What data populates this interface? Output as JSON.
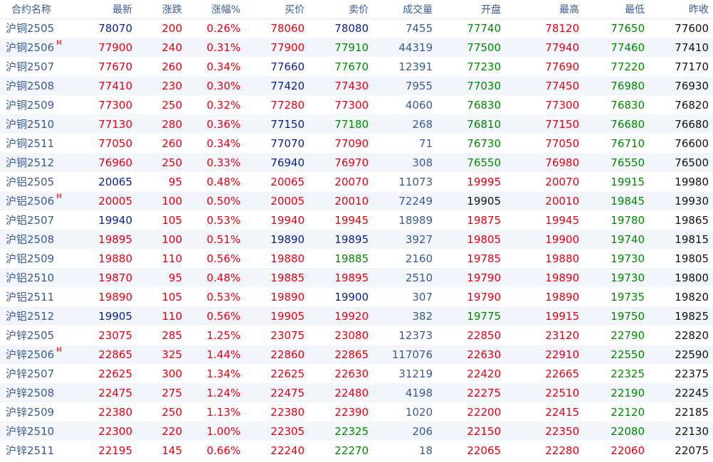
{
  "colors": {
    "up": "#e60012",
    "down": "#008a00",
    "flat": "#0a1f8c",
    "header": "#3c5a91",
    "volume": "#3c5a91",
    "prev_close": "#111111",
    "row_stripe": "#f2f5fa"
  },
  "headers": [
    "合约名称",
    "最新",
    "涨跌",
    "涨幅%",
    "买价",
    "卖价",
    "成交量",
    "开盘",
    "最高",
    "最低",
    "昨收"
  ],
  "main_marker": "M",
  "rows": [
    {
      "name": "沪铜2505",
      "main": "",
      "latest": "78070",
      "change": "200",
      "pct": "0.26%",
      "bid": "78060",
      "ask": "78080",
      "volume": "7455",
      "open": "77740",
      "high": "78120",
      "low": "77650",
      "prev": "77600",
      "cl": "navy",
      "cb": "red",
      "ca": "navy",
      "co": "green",
      "ch": "red",
      "clw": "green"
    },
    {
      "name": "沪铜2506",
      "main": "M",
      "latest": "77900",
      "change": "240",
      "pct": "0.31%",
      "bid": "77900",
      "ask": "77910",
      "volume": "44319",
      "open": "77500",
      "high": "77940",
      "low": "77460",
      "prev": "77410",
      "cl": "red",
      "cb": "red",
      "ca": "green",
      "co": "green",
      "ch": "red",
      "clw": "green"
    },
    {
      "name": "沪铜2507",
      "main": "",
      "latest": "77670",
      "change": "260",
      "pct": "0.34%",
      "bid": "77660",
      "ask": "77670",
      "volume": "12391",
      "open": "77230",
      "high": "77690",
      "low": "77220",
      "prev": "77170",
      "cl": "red",
      "cb": "navy",
      "ca": "green",
      "co": "green",
      "ch": "red",
      "clw": "green"
    },
    {
      "name": "沪铜2508",
      "main": "",
      "latest": "77410",
      "change": "230",
      "pct": "0.30%",
      "bid": "77420",
      "ask": "77430",
      "volume": "7955",
      "open": "77030",
      "high": "77450",
      "low": "76980",
      "prev": "76930",
      "cl": "red",
      "cb": "navy",
      "ca": "red",
      "co": "green",
      "ch": "red",
      "clw": "green"
    },
    {
      "name": "沪铜2509",
      "main": "",
      "latest": "77300",
      "change": "250",
      "pct": "0.32%",
      "bid": "77280",
      "ask": "77300",
      "volume": "4060",
      "open": "76830",
      "high": "77300",
      "low": "76830",
      "prev": "76820",
      "cl": "red",
      "cb": "red",
      "ca": "red",
      "co": "green",
      "ch": "red",
      "clw": "green"
    },
    {
      "name": "沪铜2510",
      "main": "",
      "latest": "77130",
      "change": "280",
      "pct": "0.36%",
      "bid": "77150",
      "ask": "77180",
      "volume": "268",
      "open": "76810",
      "high": "77150",
      "low": "76680",
      "prev": "76680",
      "cl": "red",
      "cb": "navy",
      "ca": "green",
      "co": "green",
      "ch": "red",
      "clw": "green"
    },
    {
      "name": "沪铜2511",
      "main": "",
      "latest": "77050",
      "change": "260",
      "pct": "0.34%",
      "bid": "77070",
      "ask": "77090",
      "volume": "71",
      "open": "76730",
      "high": "77050",
      "low": "76710",
      "prev": "76600",
      "cl": "red",
      "cb": "navy",
      "ca": "red",
      "co": "green",
      "ch": "red",
      "clw": "green"
    },
    {
      "name": "沪铜2512",
      "main": "",
      "latest": "76960",
      "change": "250",
      "pct": "0.33%",
      "bid": "76940",
      "ask": "76970",
      "volume": "308",
      "open": "76550",
      "high": "76980",
      "low": "76550",
      "prev": "76500",
      "cl": "red",
      "cb": "navy",
      "ca": "red",
      "co": "green",
      "ch": "red",
      "clw": "green"
    },
    {
      "name": "沪铝2505",
      "main": "",
      "latest": "20065",
      "change": "95",
      "pct": "0.48%",
      "bid": "20065",
      "ask": "20070",
      "volume": "11073",
      "open": "19995",
      "high": "20070",
      "low": "19915",
      "prev": "19980",
      "cl": "navy",
      "cb": "red",
      "ca": "red",
      "co": "red",
      "ch": "red",
      "clw": "green"
    },
    {
      "name": "沪铝2506",
      "main": "M",
      "latest": "20005",
      "change": "100",
      "pct": "0.50%",
      "bid": "20005",
      "ask": "20010",
      "volume": "72249",
      "open": "19905",
      "high": "20010",
      "low": "19845",
      "prev": "19930",
      "cl": "red",
      "cb": "red",
      "ca": "red",
      "co": "black",
      "ch": "red",
      "clw": "green"
    },
    {
      "name": "沪铝2507",
      "main": "",
      "latest": "19940",
      "change": "105",
      "pct": "0.53%",
      "bid": "19940",
      "ask": "19945",
      "volume": "18989",
      "open": "19875",
      "high": "19945",
      "low": "19780",
      "prev": "19865",
      "cl": "navy",
      "cb": "red",
      "ca": "red",
      "co": "red",
      "ch": "red",
      "clw": "green"
    },
    {
      "name": "沪铝2508",
      "main": "",
      "latest": "19895",
      "change": "100",
      "pct": "0.51%",
      "bid": "19890",
      "ask": "19895",
      "volume": "3927",
      "open": "19805",
      "high": "19900",
      "low": "19740",
      "prev": "19815",
      "cl": "red",
      "cb": "navy",
      "ca": "navy",
      "co": "red",
      "ch": "red",
      "clw": "green"
    },
    {
      "name": "沪铝2509",
      "main": "",
      "latest": "19880",
      "change": "110",
      "pct": "0.56%",
      "bid": "19880",
      "ask": "19885",
      "volume": "2160",
      "open": "19785",
      "high": "19880",
      "low": "19730",
      "prev": "19805",
      "cl": "red",
      "cb": "red",
      "ca": "green",
      "co": "red",
      "ch": "red",
      "clw": "green"
    },
    {
      "name": "沪铝2510",
      "main": "",
      "latest": "19870",
      "change": "95",
      "pct": "0.48%",
      "bid": "19885",
      "ask": "19895",
      "volume": "2510",
      "open": "19790",
      "high": "19890",
      "low": "19730",
      "prev": "19800",
      "cl": "red",
      "cb": "red",
      "ca": "red",
      "co": "red",
      "ch": "red",
      "clw": "green"
    },
    {
      "name": "沪铝2511",
      "main": "",
      "latest": "19890",
      "change": "105",
      "pct": "0.53%",
      "bid": "19890",
      "ask": "19900",
      "volume": "307",
      "open": "19790",
      "high": "19890",
      "low": "19735",
      "prev": "19820",
      "cl": "red",
      "cb": "red",
      "ca": "navy",
      "co": "red",
      "ch": "red",
      "clw": "green"
    },
    {
      "name": "沪铝2512",
      "main": "",
      "latest": "19905",
      "change": "110",
      "pct": "0.56%",
      "bid": "19905",
      "ask": "19920",
      "volume": "382",
      "open": "19775",
      "high": "19915",
      "low": "19750",
      "prev": "19825",
      "cl": "navy",
      "cb": "red",
      "ca": "red",
      "co": "green",
      "ch": "red",
      "clw": "green"
    },
    {
      "name": "沪锌2505",
      "main": "",
      "latest": "23075",
      "change": "285",
      "pct": "1.25%",
      "bid": "23075",
      "ask": "23080",
      "volume": "12373",
      "open": "22850",
      "high": "23120",
      "low": "22790",
      "prev": "22820",
      "cl": "red",
      "cb": "red",
      "ca": "red",
      "co": "red",
      "ch": "red",
      "clw": "green"
    },
    {
      "name": "沪锌2506",
      "main": "M",
      "latest": "22865",
      "change": "325",
      "pct": "1.44%",
      "bid": "22860",
      "ask": "22865",
      "volume": "117076",
      "open": "22630",
      "high": "22910",
      "low": "22550",
      "prev": "22590",
      "cl": "red",
      "cb": "red",
      "ca": "red",
      "co": "red",
      "ch": "red",
      "clw": "green"
    },
    {
      "name": "沪锌2507",
      "main": "",
      "latest": "22625",
      "change": "300",
      "pct": "1.34%",
      "bid": "22625",
      "ask": "22630",
      "volume": "31219",
      "open": "22420",
      "high": "22665",
      "low": "22325",
      "prev": "22375",
      "cl": "red",
      "cb": "red",
      "ca": "red",
      "co": "red",
      "ch": "red",
      "clw": "green"
    },
    {
      "name": "沪锌2508",
      "main": "",
      "latest": "22475",
      "change": "275",
      "pct": "1.24%",
      "bid": "22475",
      "ask": "22480",
      "volume": "4198",
      "open": "22275",
      "high": "22510",
      "low": "22190",
      "prev": "22245",
      "cl": "red",
      "cb": "red",
      "ca": "red",
      "co": "red",
      "ch": "red",
      "clw": "green"
    },
    {
      "name": "沪锌2509",
      "main": "",
      "latest": "22380",
      "change": "250",
      "pct": "1.13%",
      "bid": "22380",
      "ask": "22390",
      "volume": "1020",
      "open": "22200",
      "high": "22415",
      "low": "22120",
      "prev": "22185",
      "cl": "red",
      "cb": "red",
      "ca": "red",
      "co": "red",
      "ch": "red",
      "clw": "green"
    },
    {
      "name": "沪锌2510",
      "main": "",
      "latest": "22300",
      "change": "220",
      "pct": "1.00%",
      "bid": "22305",
      "ask": "22325",
      "volume": "206",
      "open": "22150",
      "high": "22350",
      "low": "22080",
      "prev": "22130",
      "cl": "red",
      "cb": "red",
      "ca": "green",
      "co": "red",
      "ch": "red",
      "clw": "green"
    },
    {
      "name": "沪锌2511",
      "main": "",
      "latest": "22195",
      "change": "145",
      "pct": "0.66%",
      "bid": "22240",
      "ask": "22270",
      "volume": "18",
      "open": "22065",
      "high": "22280",
      "low": "22060",
      "prev": "22075",
      "cl": "red",
      "cb": "red",
      "ca": "green",
      "co": "red",
      "ch": "red",
      "clw": "red"
    }
  ]
}
